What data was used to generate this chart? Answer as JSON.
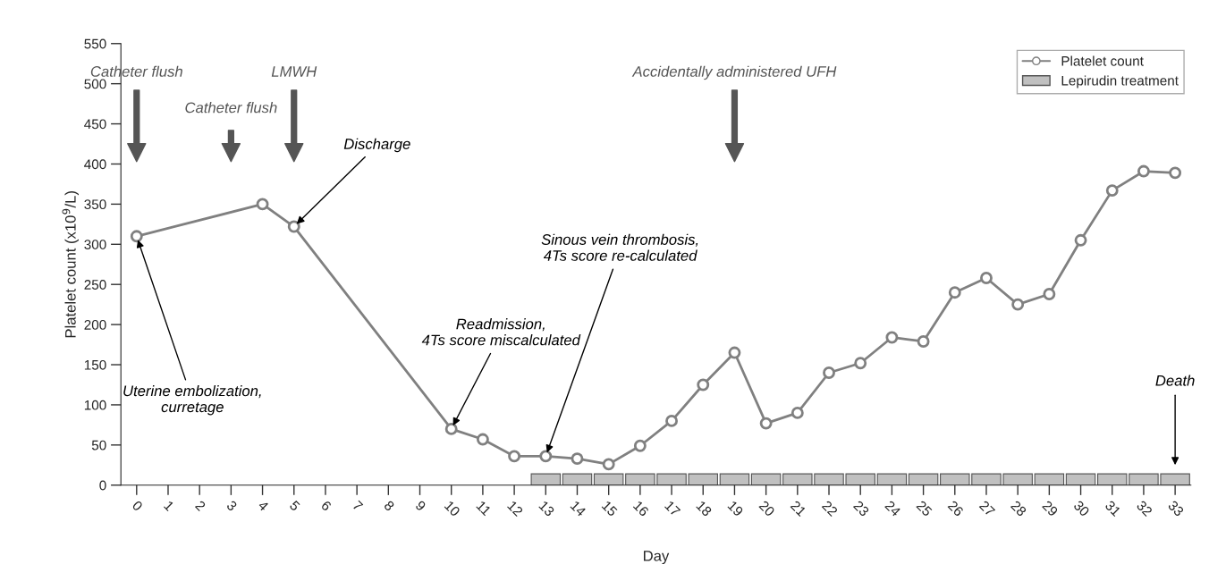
{
  "chart_data": {
    "type": "line",
    "xlabel": "Day",
    "ylabel": "Platelet count (x10$^{9}$/L)",
    "x": [
      0,
      4,
      5,
      10,
      11,
      12,
      13,
      14,
      15,
      16,
      17,
      18,
      19,
      20,
      21,
      22,
      23,
      24,
      25,
      26,
      27,
      28,
      29,
      30,
      31,
      32,
      33
    ],
    "series": [
      {
        "name": "Platelet count",
        "color": "#808080",
        "values": [
          310,
          350,
          322,
          70,
          57,
          36,
          36,
          33,
          26,
          49,
          80,
          125,
          165,
          77,
          90,
          140,
          152,
          184,
          179,
          240,
          258,
          225,
          238,
          305,
          367,
          391,
          389
        ]
      },
      {
        "name": "Lepirudin treatment",
        "type": "bar",
        "color": "#c0c0c0",
        "x": [
          13,
          14,
          15,
          16,
          17,
          18,
          19,
          20,
          21,
          22,
          23,
          24,
          25,
          26,
          27,
          28,
          29,
          30,
          31,
          32,
          33
        ],
        "values": [
          14,
          14,
          14,
          14,
          14,
          14,
          14,
          14,
          14,
          14,
          14,
          14,
          14,
          14,
          14,
          14,
          14,
          14,
          14,
          14,
          14
        ]
      }
    ],
    "marker": "circle",
    "line_style": "solid",
    "xlim": [
      -0.5,
      33.5
    ],
    "xticks": [
      0,
      1,
      2,
      3,
      4,
      5,
      6,
      7,
      8,
      9,
      10,
      11,
      12,
      13,
      14,
      15,
      16,
      17,
      18,
      19,
      20,
      21,
      22,
      23,
      24,
      25,
      26,
      27,
      28,
      29,
      30,
      31,
      32,
      33
    ],
    "ylim": [
      0,
      550
    ],
    "yticks": [
      0,
      50,
      100,
      150,
      200,
      250,
      300,
      350,
      400,
      450,
      500,
      550
    ],
    "annotations": [
      "Catheter flush",
      "Catheter flush",
      "LMWH",
      "Accidentally administered UFH",
      {
        "text": "Discharge",
        "x": 5,
        "y": 322
      },
      {
        "text": "Uterine embolization,\ncurretage",
        "x": 0,
        "y": 310
      },
      {
        "text": "Readmission,\n4Ts score miscalculated",
        "x": 10,
        "y": 70
      },
      {
        "text": "Sinous vein thrombosis,\n4Ts score re-calculated",
        "x": 13,
        "y": 36
      },
      "Death"
    ],
    "grid": false,
    "legend": "top right"
  }
}
